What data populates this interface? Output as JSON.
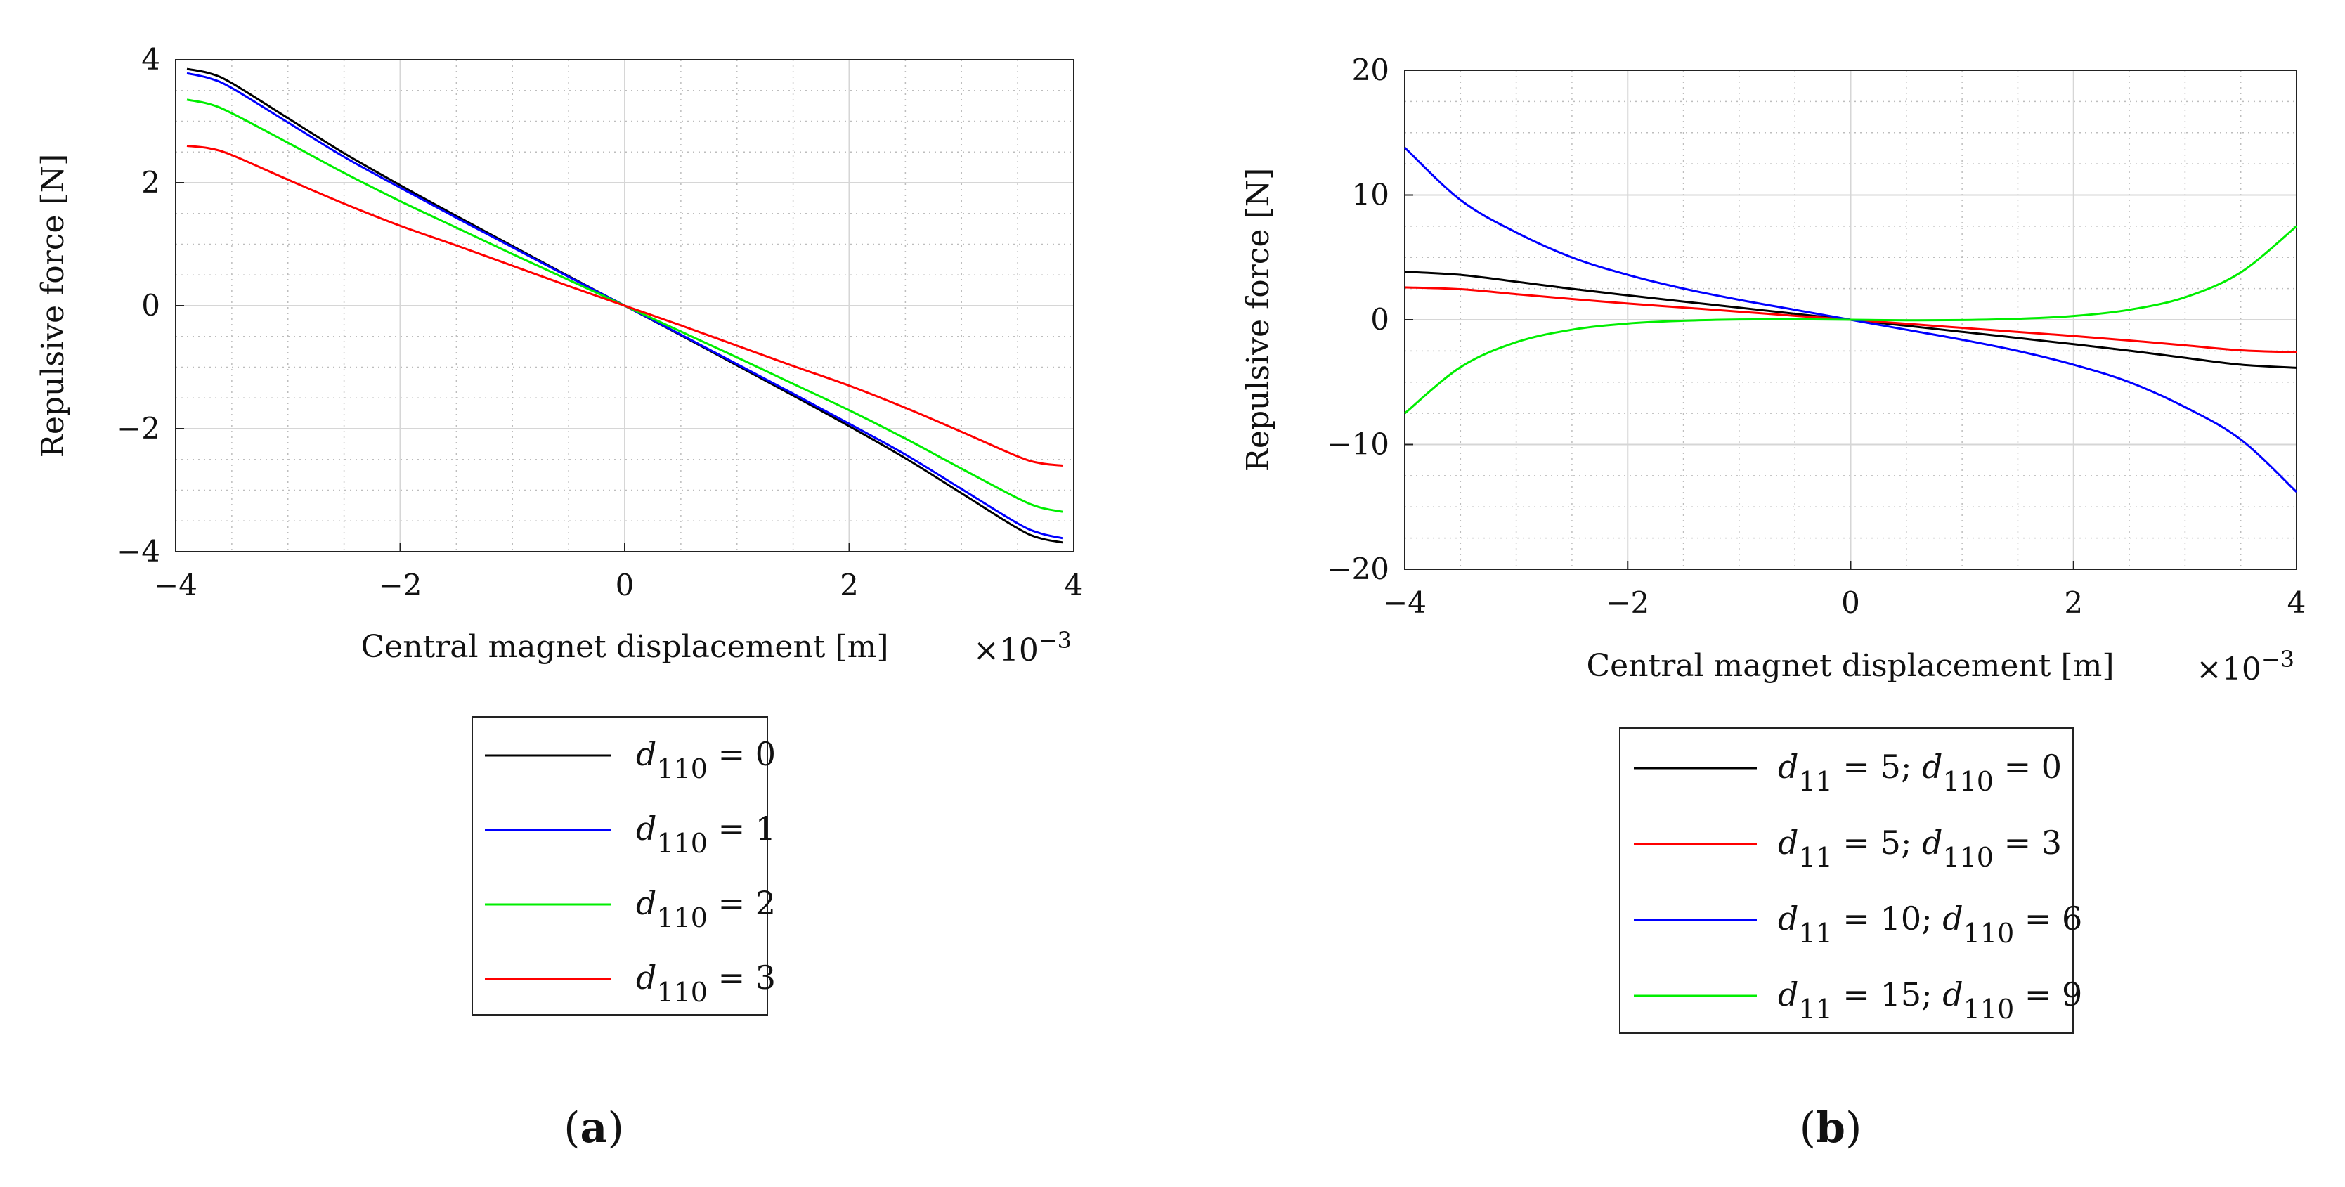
{
  "chart_data": [
    {
      "type": "line",
      "panel_label": "a",
      "xlabel": "Central magnet displacement [m]",
      "ylabel": "Repulsive force [N]",
      "x_multiplier_label": "×10",
      "x_multiplier_exp": "−3",
      "xlim": [
        -4,
        4
      ],
      "ylim": [
        -4,
        4
      ],
      "x_ticks": [
        -4,
        -2,
        0,
        2,
        4
      ],
      "y_ticks": [
        -4,
        -2,
        0,
        2,
        4
      ],
      "x_tick_labels": [
        "−4",
        "−2",
        "0",
        "2",
        "4"
      ],
      "y_tick_labels": [
        "−4",
        "−2",
        "0",
        "2",
        "4"
      ],
      "grid": true,
      "legend_position": "below",
      "x": [
        -3.9,
        -3.7,
        -3.5,
        -3.0,
        -2.5,
        -2.0,
        -1.5,
        -1.0,
        -0.5,
        0.0,
        0.5,
        1.0,
        1.5,
        2.0,
        2.5,
        3.0,
        3.5,
        3.7,
        3.9
      ],
      "series": [
        {
          "name": "d110 = 0",
          "base": "d",
          "sub": "110",
          "value_text": " = 0",
          "color": "#000000",
          "values": [
            3.85,
            3.78,
            3.62,
            3.05,
            2.48,
            1.96,
            1.46,
            0.97,
            0.48,
            0.0,
            -0.48,
            -0.97,
            -1.46,
            -1.96,
            -2.48,
            -3.05,
            -3.62,
            -3.78,
            -3.85
          ]
        },
        {
          "name": "d110 = 1",
          "base": "d",
          "sub": "110",
          "value_text": " = 1",
          "color": "#0000ff",
          "values": [
            3.78,
            3.7,
            3.54,
            2.98,
            2.42,
            1.92,
            1.43,
            0.95,
            0.47,
            0.0,
            -0.47,
            -0.95,
            -1.43,
            -1.92,
            -2.42,
            -2.98,
            -3.54,
            -3.7,
            -3.78
          ]
        },
        {
          "name": "d110 = 2",
          "base": "d",
          "sub": "110",
          "value_text": " = 2",
          "color": "#00ee00",
          "values": [
            3.35,
            3.28,
            3.13,
            2.65,
            2.16,
            1.7,
            1.27,
            0.84,
            0.42,
            0.0,
            -0.42,
            -0.84,
            -1.27,
            -1.7,
            -2.16,
            -2.65,
            -3.13,
            -3.28,
            -3.35
          ]
        },
        {
          "name": "d110 = 3",
          "base": "d",
          "sub": "110",
          "value_text": " = 3",
          "color": "#ff0000",
          "values": [
            2.6,
            2.56,
            2.45,
            2.05,
            1.66,
            1.3,
            0.98,
            0.65,
            0.32,
            0.0,
            -0.32,
            -0.65,
            -0.98,
            -1.3,
            -1.66,
            -2.05,
            -2.45,
            -2.56,
            -2.6
          ]
        }
      ]
    },
    {
      "type": "line",
      "panel_label": "b",
      "xlabel": "Central magnet displacement [m]",
      "ylabel": "Repulsive force [N]",
      "x_multiplier_label": "×10",
      "x_multiplier_exp": "−3",
      "xlim": [
        -4,
        4
      ],
      "ylim": [
        -20,
        20
      ],
      "x_ticks": [
        -4,
        -2,
        0,
        2,
        4
      ],
      "y_ticks": [
        -20,
        -10,
        0,
        10,
        20
      ],
      "x_tick_labels": [
        "−4",
        "−2",
        "0",
        "2",
        "4"
      ],
      "y_tick_labels": [
        "−20",
        "−10",
        "0",
        "10",
        "20"
      ],
      "grid": true,
      "legend_position": "below",
      "x": [
        -4.0,
        -3.5,
        -3.0,
        -2.5,
        -2.0,
        -1.5,
        -1.0,
        -0.5,
        0.0,
        0.5,
        1.0,
        1.5,
        2.0,
        2.5,
        3.0,
        3.5,
        4.0
      ],
      "series": [
        {
          "name": "d11 = 5; d110 = 0",
          "base": "d",
          "sub1": "11",
          "val1": " = 5;",
          "sub2": "110",
          "val2": " = 0",
          "color": "#000000",
          "values": [
            3.85,
            3.6,
            3.05,
            2.48,
            1.96,
            1.46,
            0.97,
            0.48,
            0.0,
            -0.48,
            -0.97,
            -1.46,
            -1.96,
            -2.48,
            -3.05,
            -3.6,
            -3.85
          ]
        },
        {
          "name": "d11 = 5; d110 = 3",
          "base": "d",
          "sub1": "11",
          "val1": " = 5;",
          "sub2": "110",
          "val2": " = 3",
          "color": "#ff0000",
          "values": [
            2.6,
            2.45,
            2.05,
            1.66,
            1.3,
            0.98,
            0.65,
            0.32,
            0.0,
            -0.32,
            -0.65,
            -0.98,
            -1.3,
            -1.66,
            -2.05,
            -2.45,
            -2.6
          ]
        },
        {
          "name": "d11 = 10; d110 = 6",
          "base": "d",
          "sub1": "11",
          "val1": " = 10;",
          "sub2": "110",
          "val2": " = 6",
          "color": "#0000ff",
          "values": [
            13.8,
            9.6,
            7.0,
            5.0,
            3.6,
            2.5,
            1.6,
            0.8,
            0.0,
            -0.8,
            -1.6,
            -2.5,
            -3.6,
            -5.0,
            -7.0,
            -9.6,
            -13.8
          ]
        },
        {
          "name": "d11 = 15; d110 = 9",
          "base": "d",
          "sub1": "11",
          "val1": " = 15;",
          "sub2": "110",
          "val2": " = 9",
          "color": "#00ee00",
          "values": [
            -7.5,
            -3.8,
            -1.8,
            -0.8,
            -0.3,
            -0.08,
            0.02,
            0.04,
            0.0,
            -0.04,
            -0.02,
            0.08,
            0.3,
            0.8,
            1.8,
            3.8,
            7.5
          ]
        }
      ]
    }
  ]
}
